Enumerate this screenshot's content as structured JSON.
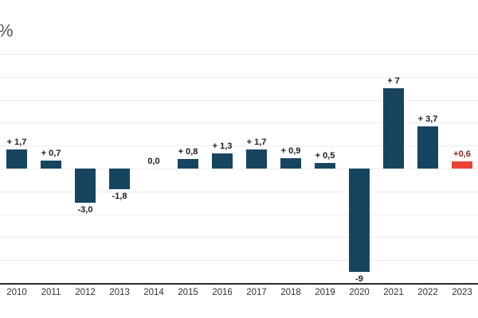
{
  "unit_label": "%",
  "colors": {
    "bar": "#17455f",
    "highlight_bar": "#e94335",
    "gridline": "#ececec",
    "axis_line": "#2b2b2b",
    "value_label": "#1d1d1d",
    "highlight_value_label": "#8b241b",
    "x_tick_label": "#333333",
    "unit_label": "#555555",
    "background": "#ffffff"
  },
  "chart_data": {
    "type": "bar",
    "title": "",
    "unit": "%",
    "categories": [
      "2010",
      "2011",
      "2012",
      "2013",
      "2014",
      "2015",
      "2016",
      "2017",
      "2018",
      "2019",
      "2020",
      "2021",
      "2022",
      "2023"
    ],
    "values": [
      1.7,
      0.7,
      -3.0,
      -1.8,
      0.0,
      0.8,
      1.3,
      1.7,
      0.9,
      0.5,
      -9,
      7,
      3.7,
      0.6
    ],
    "value_labels": [
      "+ 1,7",
      "+ 0,7",
      "-3,0",
      "-1,8",
      "0,0",
      "+ 0,8",
      "+ 1,3",
      "+ 1,7",
      "+ 0,9",
      "+ 0,5",
      "-9",
      "+ 7",
      "+ 3,7",
      "+0,6"
    ],
    "highlight_index": 13,
    "xlabel": "",
    "ylabel": "%",
    "ylim": [
      -10,
      10
    ],
    "grid": true,
    "gridline_step": 2,
    "legend": "none"
  }
}
